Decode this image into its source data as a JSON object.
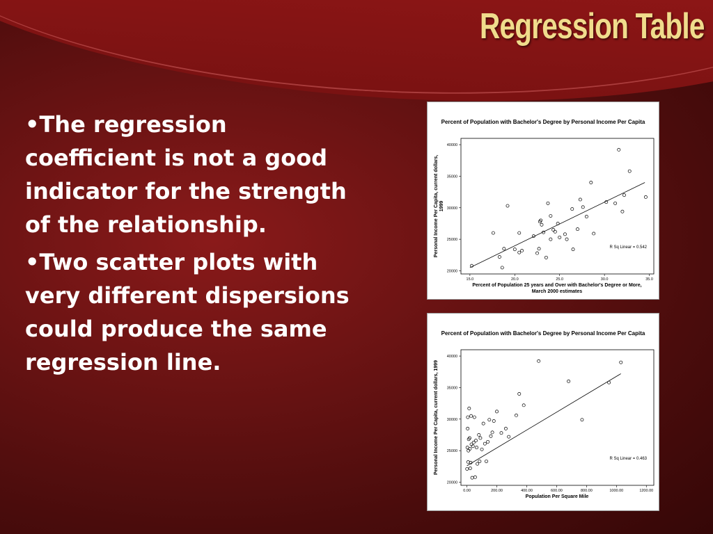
{
  "slide": {
    "title": "Regression Table",
    "bullets": [
      "The regression coefficient is not a good indicator for the strength of the relationship.",
      "Two scatter plots with very different dispersions could produce the same regression line."
    ]
  },
  "chart_data": [
    {
      "type": "scatter",
      "title": "Percent of Population with Bachelor's Degree by Personal Income Per Capita",
      "xlabel": "Percent of Population 25 years and Over with Bachelor's Degree or More, March 2000 estimates",
      "xlabel_lines": [
        "Percent of Population 25 years and Over with Bachelor's Degree or More,",
        "March 2000 estimates"
      ],
      "ylabel": "Personal Income Per Capita, current dollars, 1999",
      "ylabel_lines": [
        "Personal Income Per Capita, current dollars,",
        "1999"
      ],
      "xlim": [
        14,
        35.5
      ],
      "ylim": [
        19500,
        41000
      ],
      "xticks": [
        15.0,
        20.0,
        25.0,
        30.0,
        35.0
      ],
      "xtick_labels": [
        "15.0",
        "20.0",
        "25.0",
        "30.0",
        "35.0"
      ],
      "yticks": [
        20000,
        25000,
        30000,
        35000,
        40000
      ],
      "ytick_labels": [
        "20000",
        "25000",
        "30000",
        "35000",
        "40000"
      ],
      "fit_line": {
        "x": [
          15.0,
          34.5
        ],
        "y": [
          20500,
          34000
        ]
      },
      "annotation": "R Sq Linear = 0.542",
      "x": [
        15.2,
        17.6,
        18.3,
        18.6,
        18.8,
        19.2,
        20.0,
        20.5,
        20.5,
        20.8,
        22.1,
        22.5,
        22.7,
        22.8,
        22.9,
        23.0,
        23.2,
        23.5,
        23.7,
        24.0,
        24.0,
        24.3,
        24.5,
        24.8,
        25.0,
        25.6,
        25.8,
        26.4,
        26.5,
        27.0,
        27.3,
        27.6,
        28.0,
        28.5,
        28.8,
        30.2,
        31.2,
        31.6,
        32.0,
        32.2,
        32.8,
        34.6
      ],
      "y": [
        20800,
        26000,
        22200,
        20500,
        23500,
        30300,
        23400,
        22900,
        26000,
        23200,
        25500,
        22800,
        23500,
        27800,
        28000,
        27300,
        26100,
        22100,
        30700,
        28700,
        25000,
        26500,
        26200,
        27500,
        25300,
        25800,
        25000,
        29800,
        23400,
        26600,
        31300,
        30100,
        28600,
        34000,
        25900,
        30900,
        30700,
        39200,
        29400,
        32000,
        35800,
        31700
      ]
    },
    {
      "type": "scatter",
      "title": "Percent of Population with Bachelor's Degree by Personal Income Per Capita",
      "xlabel": "Population Per Square Mile",
      "ylabel": "Personal Income Per Capita, current dollars, 1999",
      "xlim": [
        -40,
        1250
      ],
      "ylim": [
        19500,
        41000
      ],
      "xticks": [
        0,
        200,
        400,
        600,
        800,
        1000,
        1200
      ],
      "xtick_labels": [
        "0.00",
        "200.00",
        "400.00",
        "600.00",
        "800.00",
        "1000.00",
        "1200.00"
      ],
      "yticks": [
        20000,
        25000,
        30000,
        35000,
        40000
      ],
      "ytick_labels": [
        "20000",
        "25000",
        "30000",
        "35000",
        "40000"
      ],
      "fit_line": {
        "x": [
          0,
          1030
        ],
        "y": [
          22600,
          37200
        ]
      },
      "annotation": "R Sq Linear = 0.463",
      "x": [
        1,
        3,
        5,
        6,
        8,
        10,
        12,
        15,
        18,
        20,
        22,
        25,
        28,
        30,
        35,
        40,
        45,
        50,
        55,
        60,
        65,
        70,
        80,
        85,
        90,
        100,
        110,
        120,
        130,
        140,
        150,
        160,
        170,
        180,
        200,
        230,
        260,
        280,
        330,
        350,
        380,
        480,
        680,
        770,
        950,
        1030
      ],
      "y": [
        22100,
        25500,
        28500,
        30300,
        23200,
        25000,
        26800,
        31700,
        27000,
        25300,
        22200,
        23100,
        30500,
        26000,
        20700,
        25700,
        26300,
        30300,
        20800,
        26600,
        25500,
        22900,
        27500,
        23300,
        27000,
        25200,
        29300,
        26100,
        23300,
        26400,
        29900,
        27300,
        27900,
        29700,
        31200,
        27800,
        28500,
        27200,
        30600,
        34000,
        32200,
        39200,
        36000,
        29900,
        35800,
        39000
      ]
    }
  ]
}
